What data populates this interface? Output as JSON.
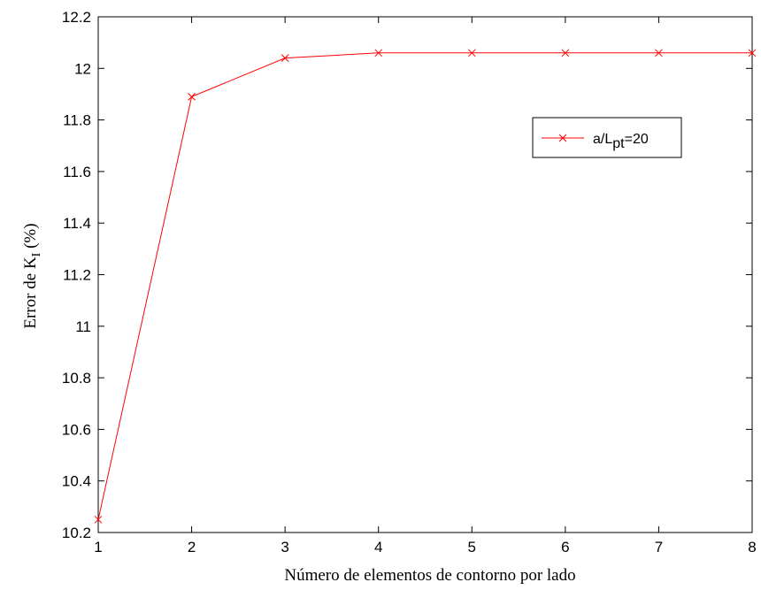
{
  "chart_data": {
    "type": "line",
    "xlabel": "Número de elementos de contorno por lado",
    "ylabel_main": "Error de K",
    "ylabel_sub": "I",
    "ylabel_tail": " (%)",
    "xlim": [
      1,
      8
    ],
    "ylim": [
      10.2,
      12.2
    ],
    "x_ticks": [
      "1",
      "2",
      "3",
      "4",
      "5",
      "6",
      "7",
      "8"
    ],
    "y_ticks": [
      "10.2",
      "10.4",
      "10.6",
      "10.8",
      "11",
      "11.2",
      "11.4",
      "11.6",
      "11.8",
      "12",
      "12.2"
    ],
    "grid": false,
    "legend_position": "upper-right",
    "series": [
      {
        "legend_main": "a/L",
        "legend_sub": "pt",
        "legend_tail": "=20",
        "color": "#ff0000",
        "marker": "x",
        "x": [
          1,
          2,
          3,
          4,
          5,
          6,
          7,
          8
        ],
        "y": [
          10.25,
          11.89,
          12.04,
          12.06,
          12.06,
          12.06,
          12.06,
          12.06
        ]
      }
    ]
  }
}
